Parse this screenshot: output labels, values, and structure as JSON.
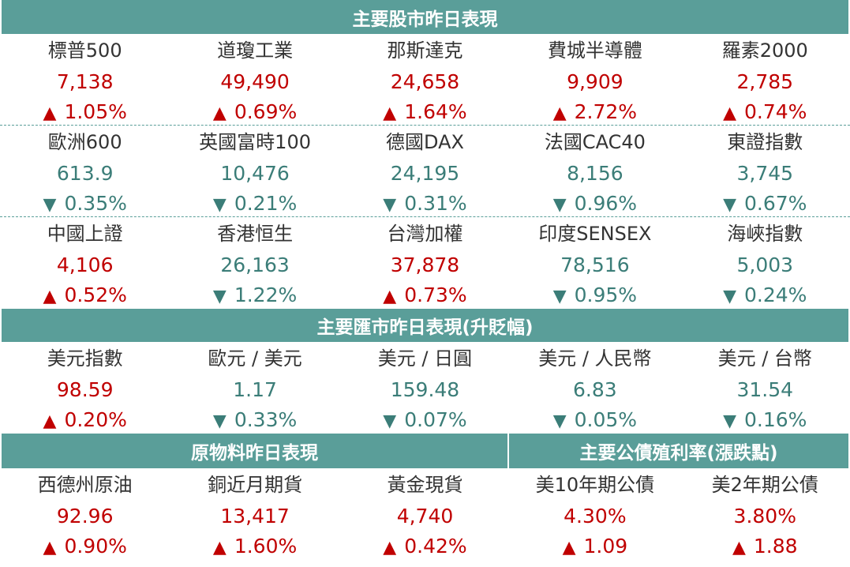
{
  "colors": {
    "header_bg": "#5a9e99",
    "up": "#c00000",
    "down": "#3b7d78",
    "label": "#333333"
  },
  "icons": {
    "up": "up-triangle-icon",
    "down": "down-triangle-icon"
  },
  "glyphs": {
    "up": "▲",
    "down": "▼"
  },
  "stocks": {
    "title": "主要股市昨日表現",
    "rows": [
      [
        {
          "name": "標普500",
          "value": "7,138",
          "change": "1.05%",
          "dir": "up"
        },
        {
          "name": "道瓊工業",
          "value": "49,490",
          "change": "0.69%",
          "dir": "up"
        },
        {
          "name": "那斯達克",
          "value": "24,658",
          "change": "1.64%",
          "dir": "up"
        },
        {
          "name": "費城半導體",
          "value": "9,909",
          "change": "2.72%",
          "dir": "up"
        },
        {
          "name": "羅素2000",
          "value": "2,785",
          "change": "0.74%",
          "dir": "up"
        }
      ],
      [
        {
          "name": "歐洲600",
          "value": "613.9",
          "change": "0.35%",
          "dir": "down"
        },
        {
          "name": "英國富時100",
          "value": "10,476",
          "change": "0.21%",
          "dir": "down"
        },
        {
          "name": "德國DAX",
          "value": "24,195",
          "change": "0.31%",
          "dir": "down"
        },
        {
          "name": "法國CAC40",
          "value": "8,156",
          "change": "0.96%",
          "dir": "down"
        },
        {
          "name": "東證指數",
          "value": "3,745",
          "change": "0.67%",
          "dir": "down"
        }
      ],
      [
        {
          "name": "中國上證",
          "value": "4,106",
          "change": "0.52%",
          "dir": "up"
        },
        {
          "name": "香港恒生",
          "value": "26,163",
          "change": "1.22%",
          "dir": "down"
        },
        {
          "name": "台灣加權",
          "value": "37,878",
          "change": "0.73%",
          "dir": "up"
        },
        {
          "name": "印度SENSEX",
          "value": "78,516",
          "change": "0.95%",
          "dir": "down"
        },
        {
          "name": "海峽指數",
          "value": "5,003",
          "change": "0.24%",
          "dir": "down"
        }
      ]
    ]
  },
  "fx": {
    "title": "主要匯市昨日表現(升貶幅)",
    "items": [
      {
        "name": "美元指數",
        "value": "98.59",
        "change": "0.20%",
        "dir": "up"
      },
      {
        "name": "歐元 / 美元",
        "value": "1.17",
        "change": "0.33%",
        "dir": "down"
      },
      {
        "name": "美元 / 日圓",
        "value": "159.48",
        "change": "0.07%",
        "dir": "down"
      },
      {
        "name": "美元 / 人民幣",
        "value": "6.83",
        "change": "0.05%",
        "dir": "down"
      },
      {
        "name": "美元 / 台幣",
        "value": "31.54",
        "change": "0.16%",
        "dir": "down"
      }
    ]
  },
  "commodities": {
    "title": "原物料昨日表現",
    "items": [
      {
        "name": "西德州原油",
        "value": "92.96",
        "change": "0.90%",
        "dir": "up"
      },
      {
        "name": "銅近月期貨",
        "value": "13,417",
        "change": "1.60%",
        "dir": "up"
      },
      {
        "name": "黃金現貨",
        "value": "4,740",
        "change": "0.42%",
        "dir": "up"
      }
    ]
  },
  "bonds": {
    "title": "主要公債殖利率(漲跌點)",
    "items": [
      {
        "name": "美10年期公債",
        "value": "4.30%",
        "change": "1.09",
        "dir": "up"
      },
      {
        "name": "美2年期公債",
        "value": "3.80%",
        "change": "1.88",
        "dir": "up"
      }
    ]
  }
}
